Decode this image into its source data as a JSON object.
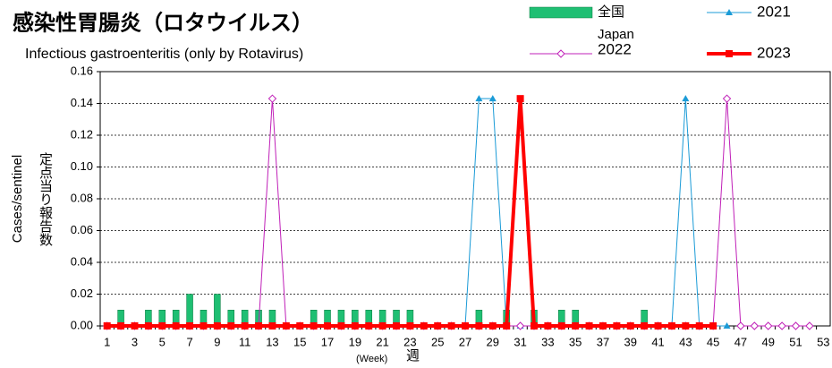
{
  "chart_data": {
    "type": "bar_line",
    "title": "感染性胃腸炎（ロタウイルス）",
    "subtitle": "Infectious gastroenteritis (only by Rotavirus)",
    "y_label": "Cases/sentinel",
    "y_label_ja": "定点当り報告数",
    "x_label": "(Week)",
    "x_label_ja": "週",
    "categories": [
      "1",
      null,
      "3",
      null,
      "5",
      null,
      "7",
      null,
      "9",
      null,
      "11",
      null,
      "13",
      null,
      "15",
      null,
      "17",
      null,
      "19",
      null,
      "21",
      null,
      "23",
      null,
      "25",
      null,
      "27",
      null,
      "29",
      null,
      "31",
      null,
      "33",
      null,
      "35",
      null,
      "37",
      null,
      "39",
      null,
      "41",
      null,
      "43",
      null,
      "45",
      null,
      "47",
      null,
      "49",
      null,
      "51",
      null,
      "53"
    ],
    "ylim": [
      0,
      0.16
    ],
    "yticks": [
      {
        "value": 0,
        "label": "0.00"
      },
      {
        "value": 0.02,
        "label": "0.02"
      },
      {
        "value": 0.04,
        "label": "0.04"
      },
      {
        "value": 0.06,
        "label": "0.06"
      },
      {
        "value": 0.08,
        "label": "0.08"
      },
      {
        "value": 0.1,
        "label": "0.10"
      },
      {
        "value": 0.12,
        "label": "0.12"
      },
      {
        "value": 0.14,
        "label": "0.14"
      },
      {
        "value": 0.16,
        "label": "0.16"
      }
    ],
    "grid": true,
    "series": [
      {
        "name": "全国",
        "name_en": "Japan",
        "kind": "bar",
        "color": "#1fbf73",
        "values": [
          0,
          0.01,
          0,
          0.01,
          0.01,
          0.01,
          0.02,
          0.01,
          0.02,
          0.01,
          0.01,
          0.01,
          0.01,
          0,
          0,
          0.01,
          0.01,
          0.01,
          0.01,
          0.01,
          0.01,
          0.01,
          0.01,
          0,
          0,
          0,
          0,
          0.01,
          0,
          0.01,
          0,
          0.01,
          0,
          0.01,
          0.01,
          0,
          0,
          0,
          0,
          0.01,
          0,
          0,
          0,
          0,
          0,
          0,
          0,
          0,
          0,
          0,
          0,
          0,
          0
        ]
      },
      {
        "name": "2021",
        "kind": "line",
        "marker": "triangle",
        "color": "#1b9bd7",
        "values": [
          0,
          0,
          0,
          0,
          0,
          0,
          0,
          0,
          0,
          0,
          0,
          0,
          0,
          0,
          0,
          0,
          0,
          0,
          0,
          0,
          0,
          0,
          0,
          0,
          0,
          0,
          0,
          0.143,
          0.143,
          0,
          0,
          0,
          0,
          0,
          0,
          0,
          0,
          0,
          0,
          0,
          0,
          0,
          0.143,
          0,
          0,
          0,
          null,
          null,
          null,
          null,
          null,
          null,
          null
        ]
      },
      {
        "name": "2022",
        "kind": "line",
        "marker": "diamond",
        "color": "#c020b8",
        "values": [
          0,
          0,
          0,
          0,
          0,
          0,
          0,
          0,
          0,
          0,
          0,
          0,
          0.143,
          0,
          0,
          0,
          0,
          0,
          0,
          0,
          0,
          0,
          0,
          0,
          0,
          0,
          0,
          0,
          0,
          0,
          0,
          0,
          0,
          0,
          0,
          0,
          0,
          0,
          0,
          0,
          0,
          0,
          0,
          0,
          0,
          0.143,
          0,
          0,
          0,
          0,
          0,
          0,
          null
        ]
      },
      {
        "name": "2023",
        "kind": "line",
        "marker": "square",
        "color": "#ff0000",
        "values": [
          0,
          0,
          0,
          0,
          0,
          0,
          0,
          0,
          0,
          0,
          0,
          0,
          0,
          0,
          0,
          0,
          0,
          0,
          0,
          0,
          0,
          0,
          0,
          0,
          0,
          0,
          0,
          0,
          0,
          0,
          0.143,
          0,
          0,
          0,
          0,
          0,
          0,
          0,
          0,
          0,
          0,
          0,
          0,
          0,
          0,
          null,
          null,
          null,
          null,
          null,
          null,
          null,
          null
        ]
      }
    ]
  }
}
